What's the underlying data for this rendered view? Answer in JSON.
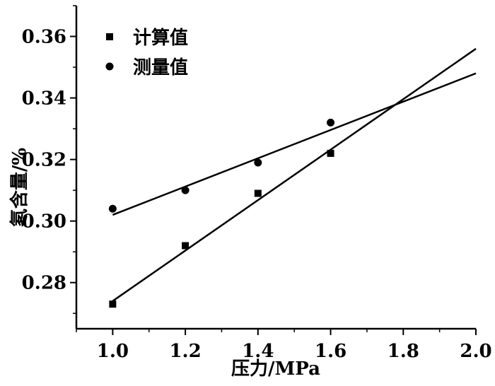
{
  "chart_data": {
    "type": "scatter",
    "xlabel": "压力/MPa",
    "ylabel": "氡含量/%",
    "xlim": [
      0.9,
      2.0
    ],
    "ylim": [
      0.265,
      0.37
    ],
    "xticks": [
      "1.0",
      "1.2",
      "1.4",
      "1.6",
      "1.8",
      "2.0"
    ],
    "yticks": [
      "0.28",
      "0.30",
      "0.32",
      "0.34",
      "0.36"
    ],
    "grid": false,
    "legend": "top-left",
    "series": [
      {
        "name": "计算值",
        "marker": "square",
        "x": [
          1.0,
          1.2,
          1.4,
          1.6
        ],
        "y": [
          0.273,
          0.292,
          0.309,
          0.322
        ],
        "fit": [
          [
            1.0,
            0.274
          ],
          [
            2.0,
            0.356
          ]
        ]
      },
      {
        "name": "测量值",
        "marker": "circle",
        "x": [
          1.0,
          1.2,
          1.4,
          1.6
        ],
        "y": [
          0.304,
          0.31,
          0.319,
          0.332
        ],
        "fit": [
          [
            1.0,
            0.302
          ],
          [
            2.0,
            0.348
          ]
        ]
      }
    ]
  }
}
